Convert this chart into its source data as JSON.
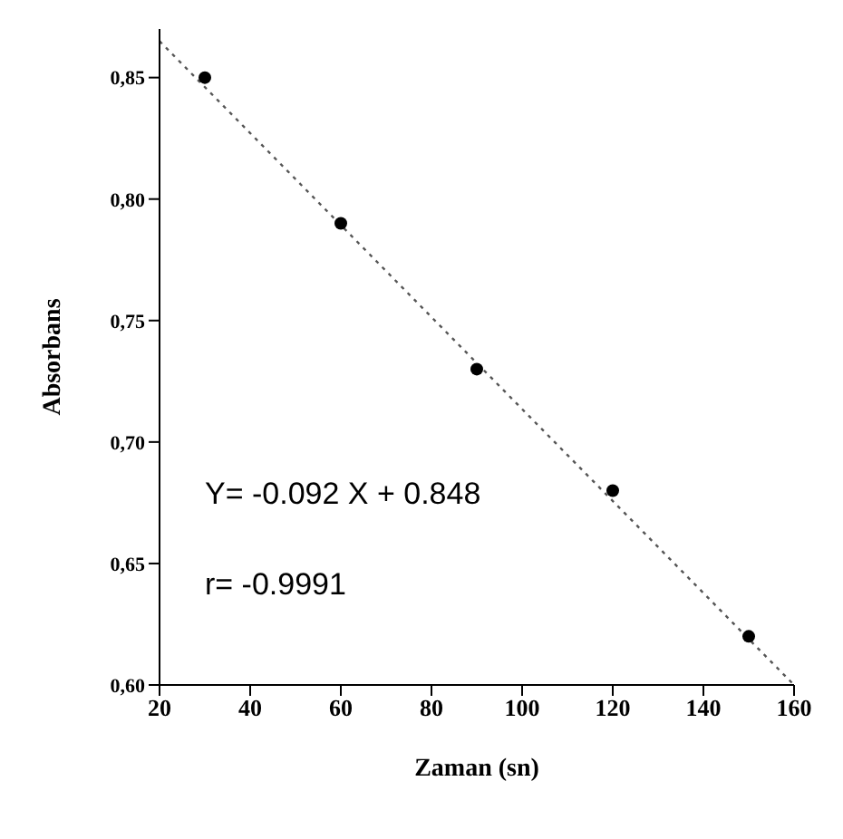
{
  "chart_data": {
    "type": "scatter",
    "xlabel": "Zaman (sn)",
    "ylabel": "Absorbans",
    "xlim": [
      20,
      160
    ],
    "xticks": [
      20,
      40,
      60,
      80,
      100,
      120,
      140,
      160
    ],
    "ylim": [
      0.6,
      0.87
    ],
    "yticks": [
      {
        "value": 0.6,
        "label": "0,60"
      },
      {
        "value": 0.65,
        "label": "0,65"
      },
      {
        "value": 0.7,
        "label": "0,70"
      },
      {
        "value": 0.75,
        "label": "0,75"
      },
      {
        "value": 0.8,
        "label": "0,80"
      },
      {
        "value": 0.85,
        "label": "0,85"
      }
    ],
    "series": [
      {
        "color": "#000000",
        "marker": "circle",
        "x": [
          30,
          60,
          90,
          120,
          150
        ],
        "values": [
          0.85,
          0.79,
          0.73,
          0.68,
          0.62
        ]
      },
      {
        "type": "line",
        "color": "#555555",
        "marker": "none",
        "line_style": "dotted",
        "x": [
          20,
          160
        ],
        "values": [
          0.865,
          0.6
        ]
      }
    ],
    "annotations": [
      "Y= -0.092 X + 0.848",
      "r= -0.9991"
    ]
  }
}
